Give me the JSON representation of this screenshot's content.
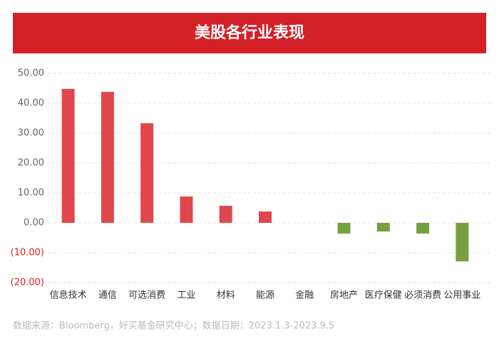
{
  "chart_data": {
    "type": "bar",
    "title": "美股各行业表现",
    "categories": [
      "信息技术",
      "通信",
      "可选消费",
      "工业",
      "材料",
      "能源",
      "金融",
      "房地产",
      "医疗保健",
      "必须消费",
      "公用事业"
    ],
    "values": [
      44.8,
      43.8,
      33.3,
      8.8,
      5.7,
      3.8,
      0,
      -3.6,
      -2.9,
      -3.6,
      -12.9
    ],
    "color": "#e0474c",
    "negative_color": "#77a040",
    "negative_label_color": "#e02020",
    "ylim": [
      -20,
      50
    ],
    "yticks": [
      {
        "value": -20,
        "label": "(20.00)"
      },
      {
        "value": -10,
        "label": "(10.00)"
      },
      {
        "value": 0,
        "label": "0.00"
      },
      {
        "value": 10,
        "label": "10.00"
      },
      {
        "value": 20,
        "label": "20.00"
      },
      {
        "value": 30,
        "label": "30.00"
      },
      {
        "value": 40,
        "label": "40.00"
      },
      {
        "value": 50,
        "label": "50.00"
      }
    ],
    "grid": true,
    "note": "数据来源：Bloomberg，好买基金研究中心；数据日期：2023.1.3-2023.9.5"
  }
}
